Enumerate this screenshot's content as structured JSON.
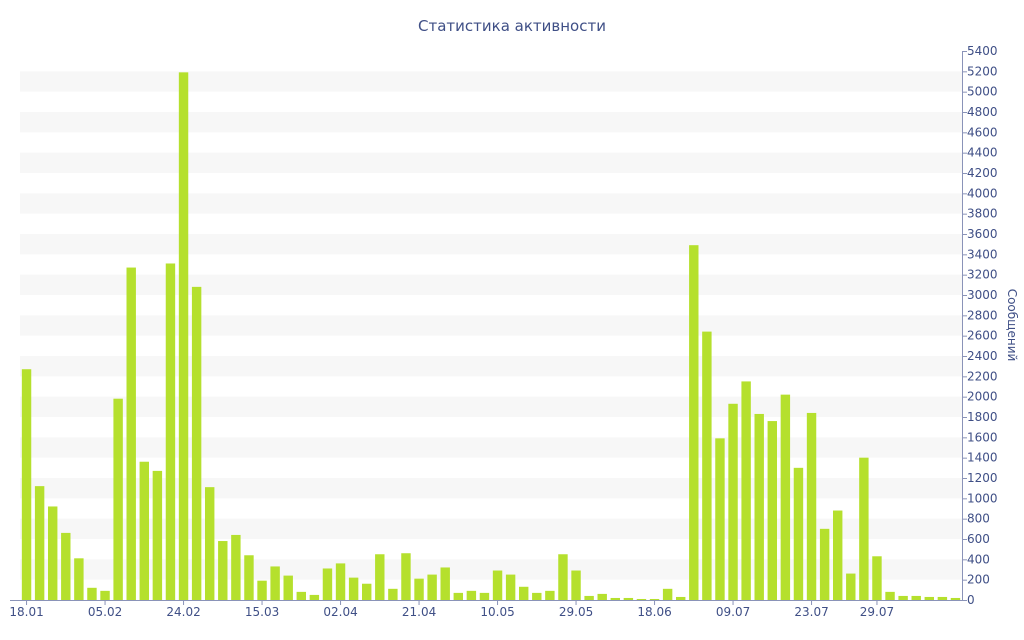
{
  "chart_data": {
    "type": "bar",
    "title": "Статистика активности",
    "xlabel": "",
    "ylabel": "Сообщений",
    "ylim": [
      0,
      5400
    ],
    "y_ticks": [
      0,
      200,
      400,
      600,
      800,
      1000,
      1200,
      1400,
      1600,
      1800,
      2000,
      2200,
      2400,
      2600,
      2800,
      3000,
      3200,
      3400,
      3600,
      3800,
      4000,
      4200,
      4400,
      4600,
      4800,
      5000,
      5200,
      5400
    ],
    "y_axis_side": "right",
    "grid": "alternating horizontal bands",
    "x_tick_labels": [
      {
        "label": "18.01",
        "index": 0
      },
      {
        "label": "05.02",
        "index": 6
      },
      {
        "label": "24.02",
        "index": 12
      },
      {
        "label": "15.03",
        "index": 18
      },
      {
        "label": "02.04",
        "index": 24
      },
      {
        "label": "21.04",
        "index": 30
      },
      {
        "label": "10.05",
        "index": 36
      },
      {
        "label": "29.05",
        "index": 42
      },
      {
        "label": "18.06",
        "index": 48
      },
      {
        "label": "09.07",
        "index": 54
      },
      {
        "label": "23.07",
        "index": 60
      },
      {
        "label": "29.07",
        "index": 65
      }
    ],
    "values": [
      2270,
      1120,
      920,
      660,
      410,
      120,
      90,
      1980,
      3270,
      1360,
      1270,
      3310,
      5190,
      3080,
      1110,
      580,
      640,
      440,
      190,
      330,
      240,
      80,
      50,
      310,
      360,
      220,
      160,
      450,
      110,
      460,
      210,
      250,
      320,
      70,
      90,
      70,
      290,
      250,
      130,
      70,
      90,
      450,
      290,
      40,
      60,
      20,
      20,
      10,
      10,
      110,
      30,
      3490,
      2640,
      1590,
      1930,
      2150,
      1830,
      1760,
      2020,
      1300,
      1840,
      700,
      880,
      260,
      1400,
      430,
      80,
      40,
      40,
      30,
      30,
      20
    ],
    "bar_color": "#b5e02d",
    "band_color": "#f7f7f7",
    "text_color": "#3f4f86"
  }
}
